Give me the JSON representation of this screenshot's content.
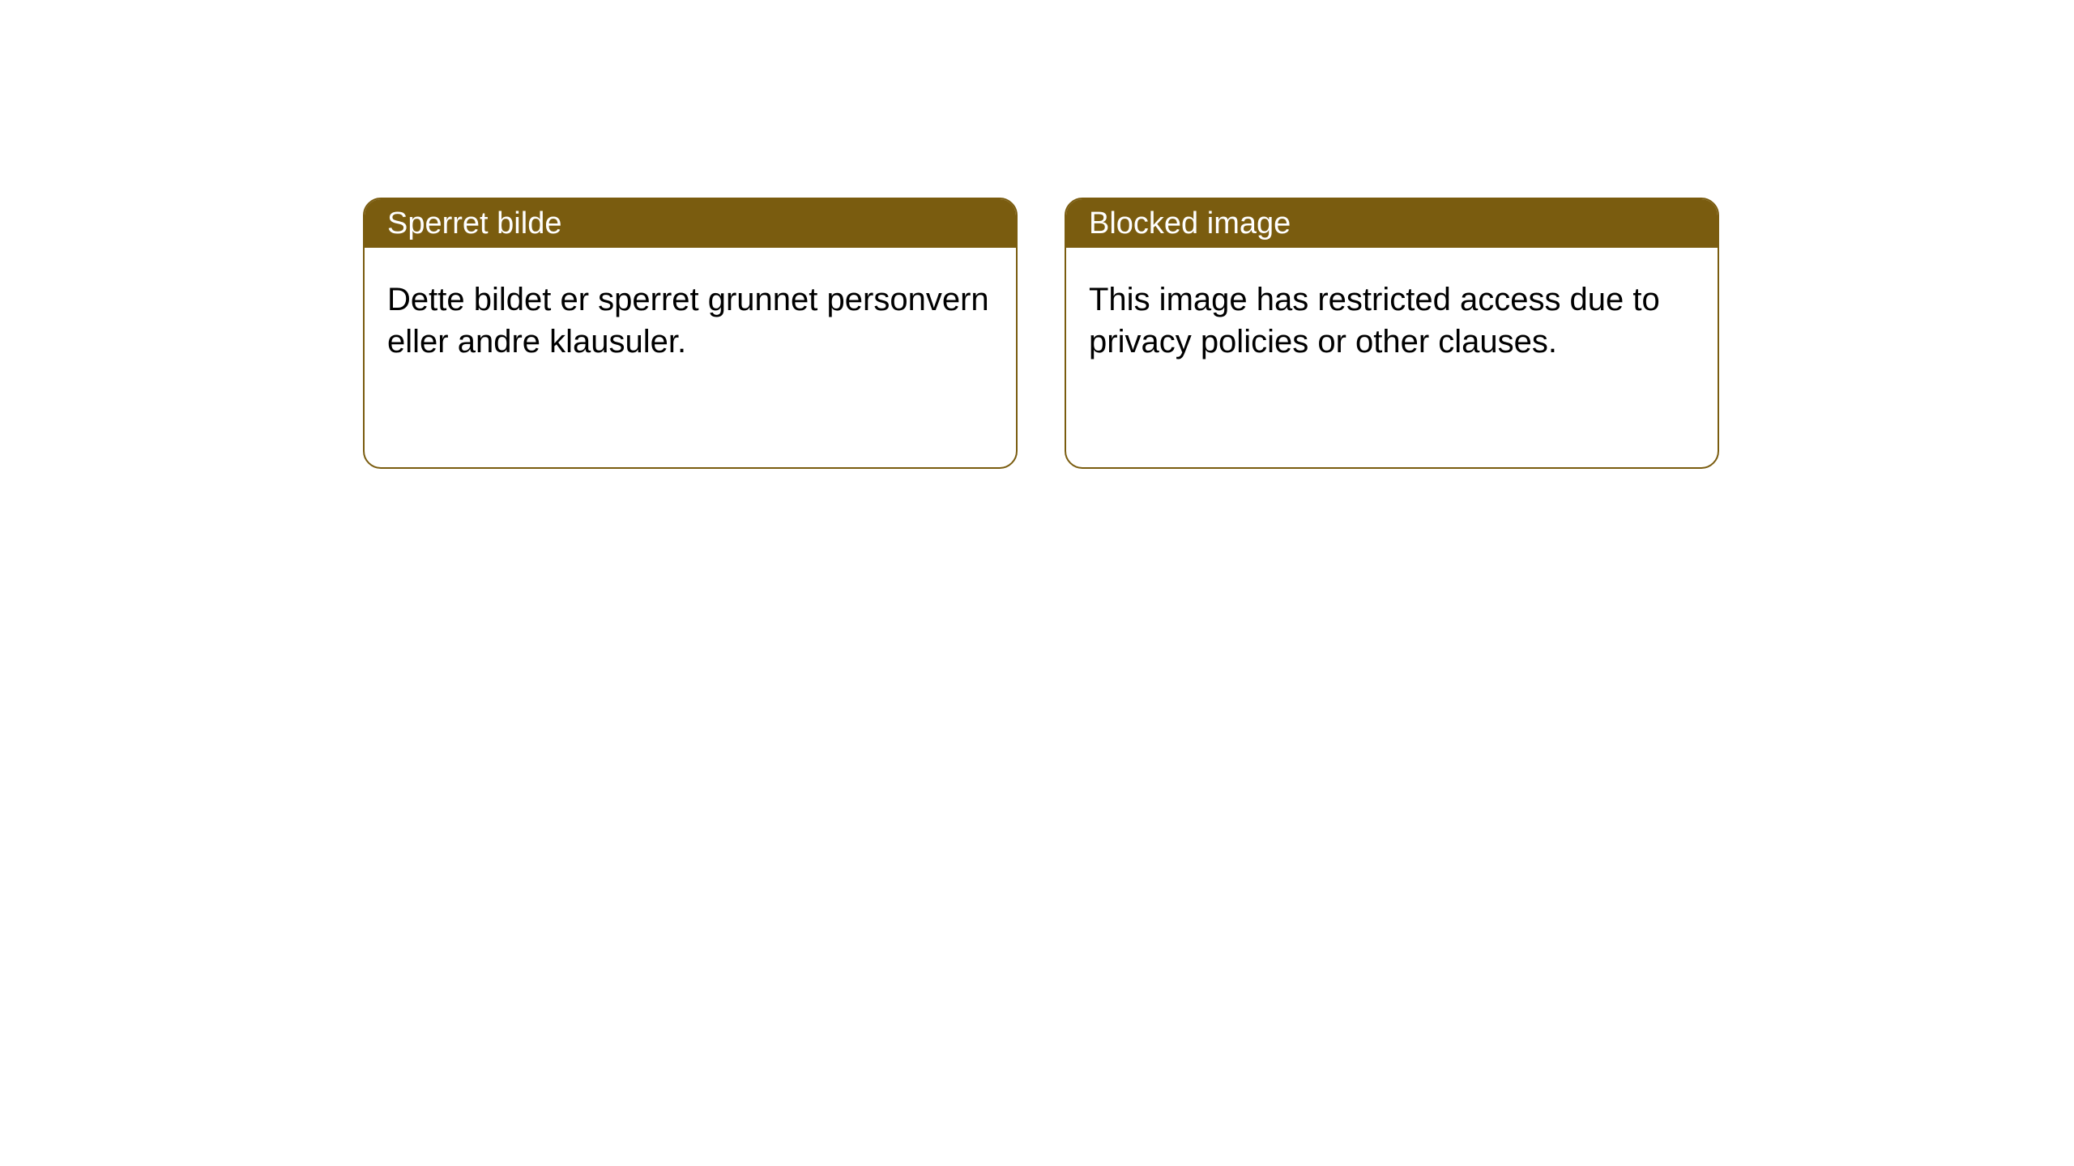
{
  "cards": [
    {
      "title": "Sperret bilde",
      "body": "Dette bildet er sperret grunnet personvern eller andre klausuler."
    },
    {
      "title": "Blocked image",
      "body": "This image has restricted access due to privacy policies or other clauses."
    }
  ],
  "style": {
    "header_bg_color": "#7a5c0f",
    "header_text_color": "#ffffff",
    "border_color": "#7a5c0f",
    "card_bg_color": "#ffffff",
    "body_text_color": "#000000",
    "border_radius": 22,
    "header_font_size": 38,
    "body_font_size": 40
  }
}
